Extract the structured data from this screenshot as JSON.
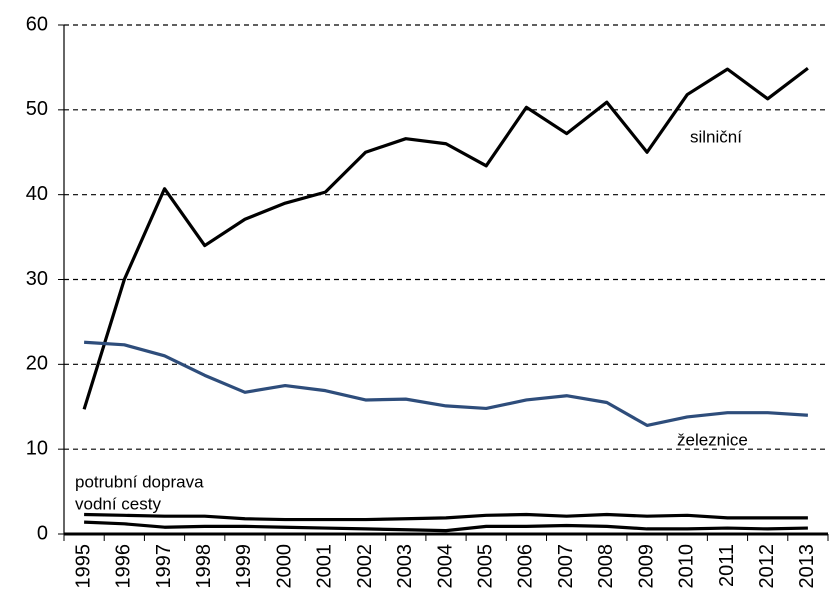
{
  "chart_data": {
    "type": "line",
    "categories": [
      "1995",
      "1996",
      "1997",
      "1998",
      "1999",
      "2000",
      "2001",
      "2002",
      "2003",
      "2004",
      "2005",
      "2006",
      "2007",
      "2008",
      "2009",
      "2010",
      "2011",
      "2012",
      "2013"
    ],
    "series": [
      {
        "name": "silniční",
        "color": "#000000",
        "values": [
          14.7,
          30,
          40.7,
          34,
          37.1,
          39,
          40.3,
          45,
          46.6,
          46,
          43.4,
          50.3,
          47.2,
          50.9,
          45,
          51.8,
          54.8,
          51.3,
          54.9
        ]
      },
      {
        "name": "železnice",
        "color": "#2e4d7b",
        "values": [
          22.6,
          22.3,
          21.0,
          18.7,
          16.7,
          17.5,
          16.9,
          15.8,
          15.9,
          15.1,
          14.8,
          15.8,
          16.3,
          15.5,
          12.8,
          13.8,
          14.3,
          14.3,
          14.0
        ]
      },
      {
        "name": "potrubní doprava",
        "color": "#000000",
        "values": [
          2.3,
          2.2,
          2.1,
          2.1,
          1.8,
          1.7,
          1.7,
          1.7,
          1.8,
          1.9,
          2.2,
          2.3,
          2.1,
          2.3,
          2.1,
          2.2,
          1.9,
          1.9,
          1.9
        ]
      },
      {
        "name": "vodní cesty",
        "color": "#000000",
        "values": [
          1.4,
          1.2,
          0.8,
          0.9,
          0.9,
          0.8,
          0.7,
          0.6,
          0.5,
          0.4,
          0.9,
          0.9,
          1.0,
          0.9,
          0.6,
          0.6,
          0.7,
          0.6,
          0.7
        ]
      }
    ],
    "ylim": [
      0,
      60
    ],
    "yticks": [
      0,
      10,
      20,
      30,
      40,
      50,
      60
    ],
    "grid": true
  }
}
